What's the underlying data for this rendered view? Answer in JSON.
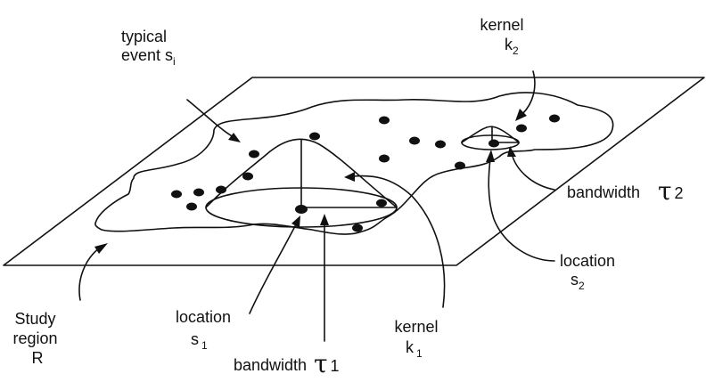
{
  "labels": {
    "typical_event_line1": "typical",
    "typical_event_line2": "event s",
    "typical_event_sub": "i",
    "kernel_k2_line1": "kernel",
    "kernel_k2_line2": "k",
    "kernel_k2_sub": "2",
    "bandwidth_tau2_text": "bandwidth",
    "bandwidth_tau2_symbol": "τ",
    "bandwidth_tau2_sub": "2",
    "location_s2_line1": "location",
    "location_s2_line2": "s",
    "location_s2_sub": "2",
    "study_region_line1": "Study",
    "study_region_line2": "region",
    "study_region_line3": "R",
    "location_s1_line1": "location",
    "location_s1_line2": "s",
    "location_s1_sub": "1",
    "bandwidth_tau1_text": "bandwidth",
    "bandwidth_tau1_symbol": "τ",
    "bandwidth_tau1_sub": "1",
    "kernel_k1_line1": "kernel",
    "kernel_k1_line2": "k",
    "kernel_k1_sub": "1"
  },
  "colors": {
    "ink": "#111111",
    "background": "#ffffff"
  }
}
